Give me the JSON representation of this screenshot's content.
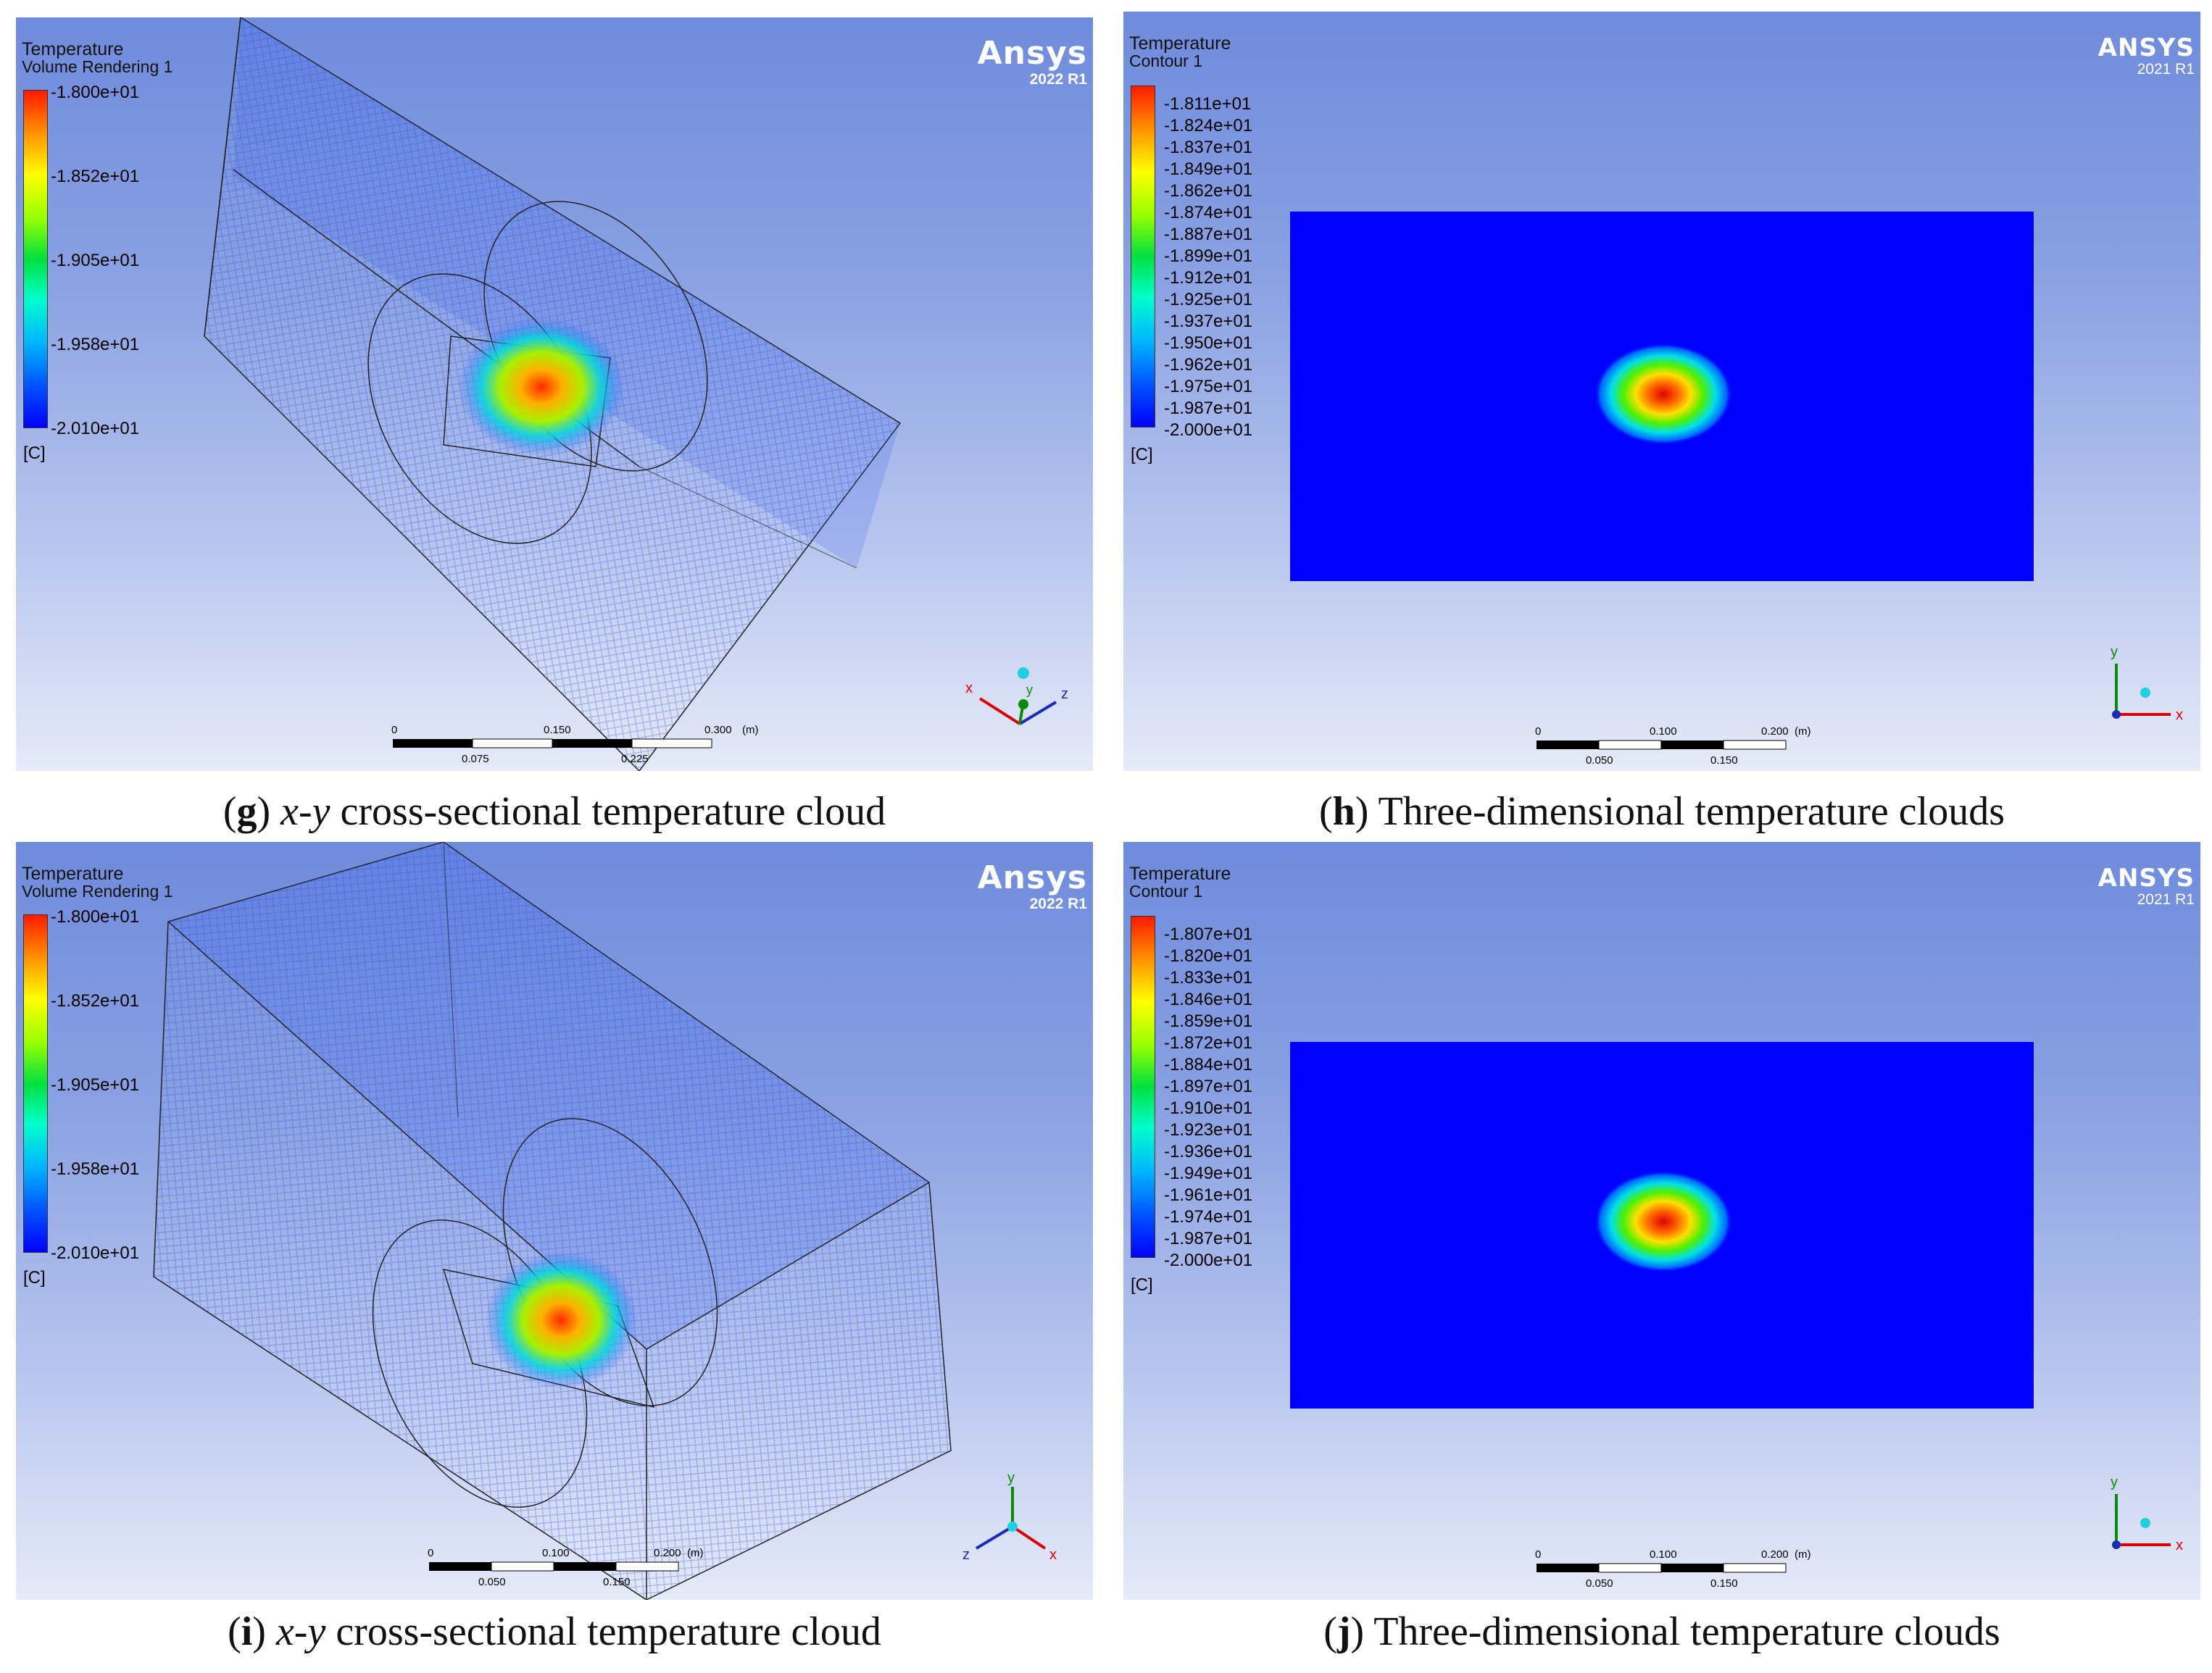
{
  "panels": {
    "g": {
      "legend_title": "Temperature",
      "legend_sub": "Volume Rendering 1",
      "legend_values": [
        "-1.800e+01",
        "-1.852e+01",
        "-1.905e+01",
        "-1.958e+01",
        "-2.010e+01"
      ],
      "unit": "[C]",
      "logo": "Ansys",
      "version": "2022 R1",
      "scale_top": [
        "0",
        "0.150",
        "0.300",
        "(m)"
      ],
      "scale_bottom": [
        "0.075",
        "0.225"
      ],
      "axes": [
        "x",
        "y",
        "z"
      ]
    },
    "h": {
      "legend_title": "Temperature",
      "legend_sub": "Contour 1",
      "legend_values": [
        "-1.811e+01",
        "-1.824e+01",
        "-1.837e+01",
        "-1.849e+01",
        "-1.862e+01",
        "-1.874e+01",
        "-1.887e+01",
        "-1.899e+01",
        "-1.912e+01",
        "-1.925e+01",
        "-1.937e+01",
        "-1.950e+01",
        "-1.962e+01",
        "-1.975e+01",
        "-1.987e+01",
        "-2.000e+01"
      ],
      "unit": "[C]",
      "logo": "ANSYS",
      "version": "2021 R1",
      "scale_top": [
        "0",
        "0.100",
        "0.200",
        "(m)"
      ],
      "scale_bottom": [
        "0.050",
        "0.150"
      ],
      "axes": [
        "y",
        "x"
      ]
    },
    "i": {
      "legend_title": "Temperature",
      "legend_sub": "Volume Rendering 1",
      "legend_values": [
        "-1.800e+01",
        "-1.852e+01",
        "-1.905e+01",
        "-1.958e+01",
        "-2.010e+01"
      ],
      "unit": "[C]",
      "logo": "Ansys",
      "version": "2022 R1",
      "scale_top": [
        "0",
        "0.100",
        "0.200",
        "(m)"
      ],
      "scale_bottom": [
        "0.050",
        "0.150"
      ],
      "axes": [
        "y",
        "z",
        "x"
      ]
    },
    "j": {
      "legend_title": "Temperature",
      "legend_sub": "Contour 1",
      "legend_values": [
        "-1.807e+01",
        "-1.820e+01",
        "-1.833e+01",
        "-1.846e+01",
        "-1.859e+01",
        "-1.872e+01",
        "-1.884e+01",
        "-1.897e+01",
        "-1.910e+01",
        "-1.923e+01",
        "-1.936e+01",
        "-1.949e+01",
        "-1.961e+01",
        "-1.974e+01",
        "-1.987e+01",
        "-2.000e+01"
      ],
      "unit": "[C]",
      "logo": "ANSYS",
      "version": "2021 R1",
      "scale_top": [
        "0",
        "0.100",
        "0.200",
        "(m)"
      ],
      "scale_bottom": [
        "0.050",
        "0.150"
      ],
      "axes": [
        "y",
        "x"
      ]
    }
  },
  "captions": {
    "g": {
      "letter": "g",
      "italic": "x-y",
      "text": "cross-sectional temperature cloud"
    },
    "h": {
      "letter": "h",
      "italic": "",
      "text": "Three-dimensional temperature clouds"
    },
    "i": {
      "letter": "i",
      "italic": "x-y",
      "text": "cross-sectional temperature cloud"
    },
    "j": {
      "letter": "j",
      "italic": "",
      "text": "Three-dimensional temperature clouds"
    }
  }
}
